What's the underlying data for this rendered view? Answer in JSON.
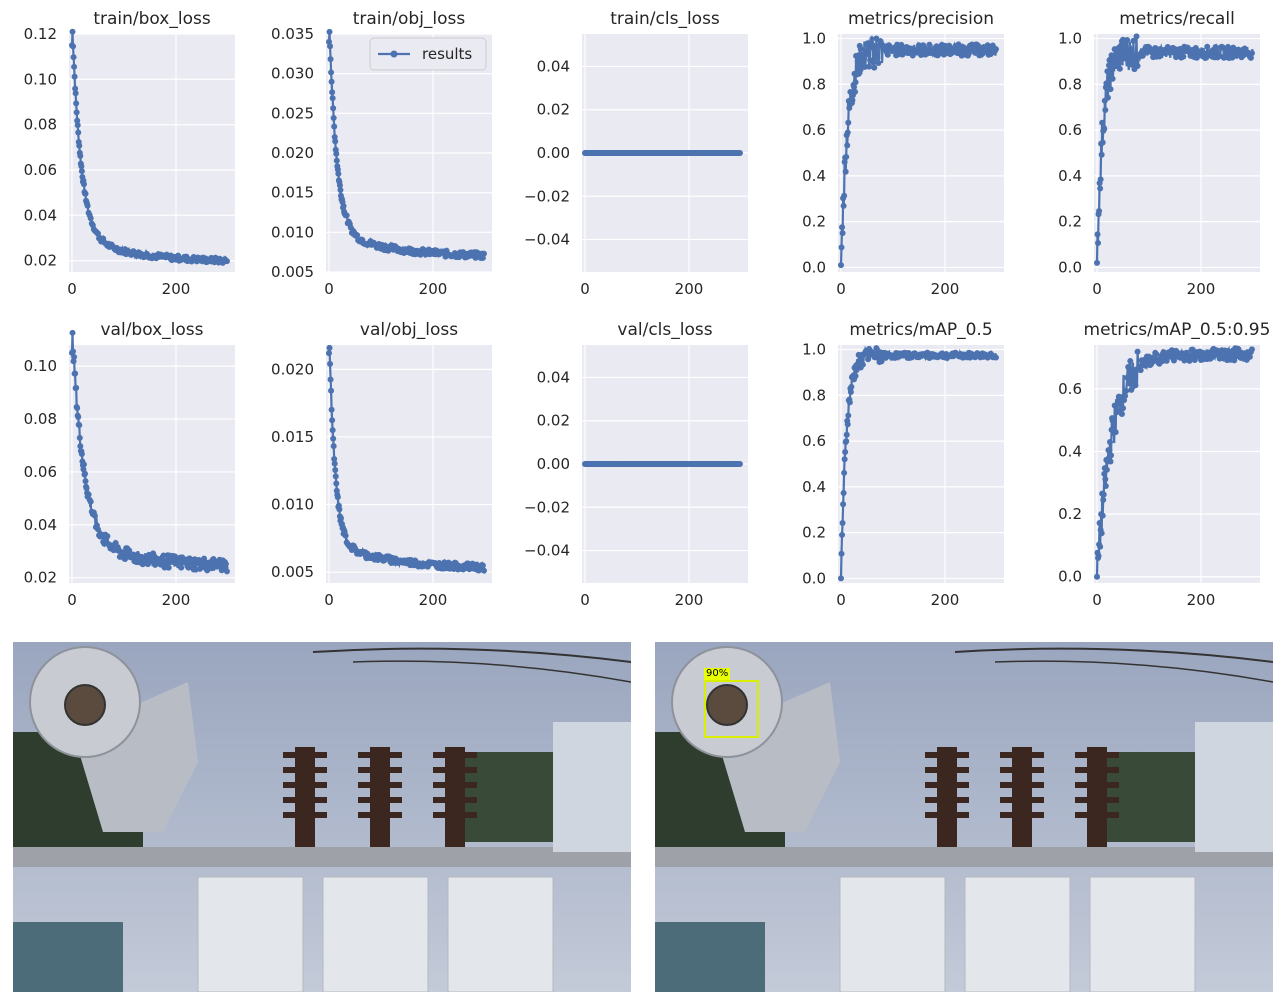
{
  "chart_data": [
    {
      "type": "line",
      "title": "train/box_loss",
      "series": [],
      "curve": {
        "kind": "decay",
        "start": 0.115,
        "end": 0.019,
        "k": 0.06,
        "noise": 0.0012
      },
      "x_range": [
        0,
        300
      ],
      "ylim": [
        0.015,
        0.12
      ],
      "xticks": [
        0,
        200
      ],
      "yticks": [
        "0.02",
        "0.04",
        "0.06",
        "0.08",
        "0.10",
        "0.12"
      ],
      "ytick_values": [
        0.02,
        0.04,
        0.06,
        0.08,
        0.1,
        0.12
      ]
    },
    {
      "type": "line",
      "title": "train/obj_loss",
      "legend": [
        "results"
      ],
      "curve": {
        "kind": "decay",
        "start": 0.034,
        "end": 0.0068,
        "k": 0.07,
        "noise": 0.0004
      },
      "x_range": [
        0,
        300
      ],
      "ylim": [
        0.005,
        0.035
      ],
      "xticks": [
        0,
        200
      ],
      "yticks": [
        "0.005",
        "0.010",
        "0.015",
        "0.020",
        "0.025",
        "0.030",
        "0.035"
      ],
      "ytick_values": [
        0.005,
        0.01,
        0.015,
        0.02,
        0.025,
        0.03,
        0.035
      ]
    },
    {
      "type": "line",
      "title": "train/cls_loss",
      "curve": {
        "kind": "flat",
        "value": 0.0
      },
      "x_range": [
        0,
        300
      ],
      "ylim": [
        -0.055,
        0.055
      ],
      "xticks": [
        0,
        200
      ],
      "yticks": [
        "0.04",
        "0.02",
        "0.00",
        "−0.02",
        "−0.04"
      ],
      "ytick_values": [
        0.04,
        0.02,
        0.0,
        -0.02,
        -0.04
      ]
    },
    {
      "type": "line",
      "title": "metrics/precision",
      "curve": {
        "kind": "rise",
        "start": 0.01,
        "end": 0.95,
        "k": 0.08,
        "noise": 0.025
      },
      "x_range": [
        0,
        300
      ],
      "ylim": [
        -0.02,
        1.02
      ],
      "xticks": [
        0,
        200
      ],
      "yticks": [
        "0.0",
        "0.2",
        "0.4",
        "0.6",
        "0.8",
        "1.0"
      ],
      "ytick_values": [
        0.0,
        0.2,
        0.4,
        0.6,
        0.8,
        1.0
      ]
    },
    {
      "type": "line",
      "title": "metrics/recall",
      "curve": {
        "kind": "rise",
        "start": 0.02,
        "end": 0.94,
        "k": 0.09,
        "noise": 0.025
      },
      "x_range": [
        0,
        300
      ],
      "ylim": [
        -0.02,
        1.02
      ],
      "xticks": [
        0,
        200
      ],
      "yticks": [
        "0.0",
        "0.2",
        "0.4",
        "0.6",
        "0.8",
        "1.0"
      ],
      "ytick_values": [
        0.0,
        0.2,
        0.4,
        0.6,
        0.8,
        1.0
      ]
    },
    {
      "type": "line",
      "title": "val/box_loss",
      "curve": {
        "kind": "decay",
        "start": 0.105,
        "end": 0.024,
        "k": 0.045,
        "noise": 0.0025
      },
      "x_range": [
        0,
        300
      ],
      "ylim": [
        0.018,
        0.108
      ],
      "xticks": [
        0,
        200
      ],
      "yticks": [
        "0.02",
        "0.04",
        "0.06",
        "0.08",
        "0.10"
      ],
      "ytick_values": [
        0.02,
        0.04,
        0.06,
        0.08,
        0.1
      ]
    },
    {
      "type": "line",
      "title": "val/obj_loss",
      "curve": {
        "kind": "decay",
        "start": 0.0212,
        "end": 0.0052,
        "k": 0.09,
        "noise": 0.00025
      },
      "x_range": [
        0,
        300
      ],
      "ylim": [
        0.0042,
        0.0218
      ],
      "xticks": [
        0,
        200
      ],
      "yticks": [
        "0.005",
        "0.010",
        "0.015",
        "0.020"
      ],
      "ytick_values": [
        0.005,
        0.01,
        0.015,
        0.02
      ]
    },
    {
      "type": "line",
      "title": "val/cls_loss",
      "curve": {
        "kind": "flat",
        "value": 0.0
      },
      "x_range": [
        0,
        300
      ],
      "ylim": [
        -0.055,
        0.055
      ],
      "xticks": [
        0,
        200
      ],
      "yticks": [
        "0.04",
        "0.02",
        "0.00",
        "−0.02",
        "−0.04"
      ],
      "ytick_values": [
        0.04,
        0.02,
        0.0,
        -0.02,
        -0.04
      ]
    },
    {
      "type": "line",
      "title": "metrics/mAP_0.5",
      "curve": {
        "kind": "rise",
        "start": 0.0,
        "end": 0.975,
        "k": 0.1,
        "noise": 0.012
      },
      "x_range": [
        0,
        300
      ],
      "ylim": [
        -0.02,
        1.02
      ],
      "xticks": [
        0,
        200
      ],
      "yticks": [
        "0.0",
        "0.2",
        "0.4",
        "0.6",
        "0.8",
        "1.0"
      ],
      "ytick_values": [
        0.0,
        0.2,
        0.4,
        0.6,
        0.8,
        1.0
      ]
    },
    {
      "type": "line",
      "title": "metrics/mAP_0.5:0.95",
      "curve": {
        "kind": "rise",
        "start": 0.0,
        "end": 0.71,
        "k": 0.035,
        "noise": 0.02
      },
      "x_range": [
        0,
        300
      ],
      "ylim": [
        -0.02,
        0.74
      ],
      "xticks": [
        0,
        200
      ],
      "yticks": [
        "0.0",
        "0.2",
        "0.4",
        "0.6"
      ],
      "ytick_values": [
        0.0,
        0.2,
        0.4,
        0.6
      ]
    }
  ],
  "colors": {
    "series": "#4c72b0",
    "panel_bg": "#eaeaf2",
    "grid": "#ffffff",
    "text": "#262626"
  },
  "photos": {
    "left": {
      "content": "substation transformer photo"
    },
    "right": {
      "detection_label": "90%"
    }
  }
}
